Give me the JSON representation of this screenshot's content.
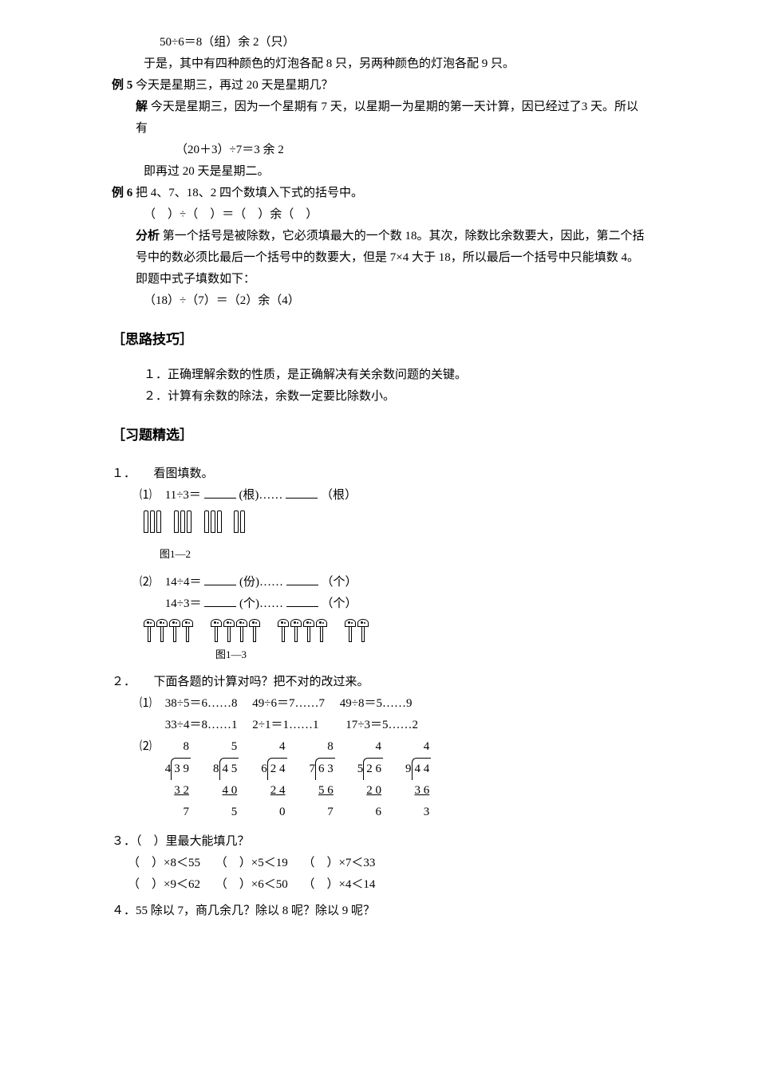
{
  "intro": {
    "calc": "50÷6＝8（组）余 2（只）",
    "conclusion": "于是，其中有四种颜色的灯泡各配 8 只，另两种颜色的灯泡各配 9 只。"
  },
  "ex5": {
    "label": "例 5",
    "question": "今天是星期三，再过 20 天是星期几？",
    "sol_label": "解",
    "sol_line1": "今天是星期三，因为一个星期有 7 天，以星期一为星期的第一天计算，因已经过了3 天。所以有",
    "sol_calc": "（20＋3）÷7＝3 余 2",
    "sol_conclusion": "即再过 20 天是星期二。"
  },
  "ex6": {
    "label": "例 6",
    "question": "把 4、7、18、2 四个数填入下式的括号中。",
    "equation": "（　）÷（　）＝（　）余（　）",
    "analysis_label": "分析",
    "analysis": "第一个括号是被除数，它必须填最大的一个数 18。其次，除数比余数要大，因此，第二个括号中的数必须比最后一个括号中的数要大，但是 7×4 大于 18，所以最后一个括号中只能填数 4。即题中式子填数如下：",
    "result": "（18）÷（7）＝（2）余（4）"
  },
  "skill_title": "［思路技巧］",
  "skill1": "１．正确理解余数的性质，是正确解决有关余数问题的关键。",
  "skill2": "２．计算有余数的除法，余数一定要比除数小。",
  "exercise_title": "［习题精选］",
  "q1": {
    "title": "１．　　看图填数。",
    "p1_label": "⑴",
    "p1_text1": "11÷3＝",
    "p1_unit1": "(根)……",
    "p1_unit2": "（根）",
    "fig1_label": "图1—2",
    "p2_label": "⑵",
    "p2_text1": "14÷4＝",
    "p2_unit1": "(份)……",
    "p2_unit2": "（个）",
    "p2_text2": "14÷3＝",
    "p2_unit3": "(个)……",
    "p2_unit4": "（个）",
    "fig2_label": "图1—3"
  },
  "q2": {
    "title": "２．　　下面各题的计算对吗？把不对的改过来。",
    "p1_label": "⑴",
    "p1_items": [
      "38÷5＝6……8",
      "49÷6＝7……7",
      "49÷8＝5……9",
      "33÷4＝8……1",
      "2÷1＝1……1",
      "17÷3＝5……2"
    ],
    "p2_label": "⑵",
    "divisions": [
      {
        "quotient": "8",
        "divisor": "4",
        "dividend": "3 9",
        "sub": "3 2",
        "remainder": "7"
      },
      {
        "quotient": "5",
        "divisor": "8",
        "dividend": "4 5",
        "sub": "4 0",
        "remainder": "5"
      },
      {
        "quotient": "4",
        "divisor": "6",
        "dividend": "2 4",
        "sub": "2 4",
        "remainder": "0"
      },
      {
        "quotient": "8",
        "divisor": "7",
        "dividend": "6 3",
        "sub": "5 6",
        "remainder": "7"
      },
      {
        "quotient": "4",
        "divisor": "5",
        "dividend": "2 6",
        "sub": "2 0",
        "remainder": "6"
      },
      {
        "quotient": "4",
        "divisor": "9",
        "dividend": "4 4",
        "sub": "3 6",
        "remainder": "3"
      }
    ]
  },
  "q3": {
    "title": "３．（　）里最大能填几？",
    "row1": [
      "（　）×8＜55",
      "（　）×5＜19",
      "（　）×7＜33"
    ],
    "row2": [
      "（　）×9＜62",
      "（　）×6＜50",
      "（　）×4＜14"
    ]
  },
  "q4": {
    "title": "４．55 除以 7，商几余几？除以 8 呢？除以 9 呢？"
  }
}
